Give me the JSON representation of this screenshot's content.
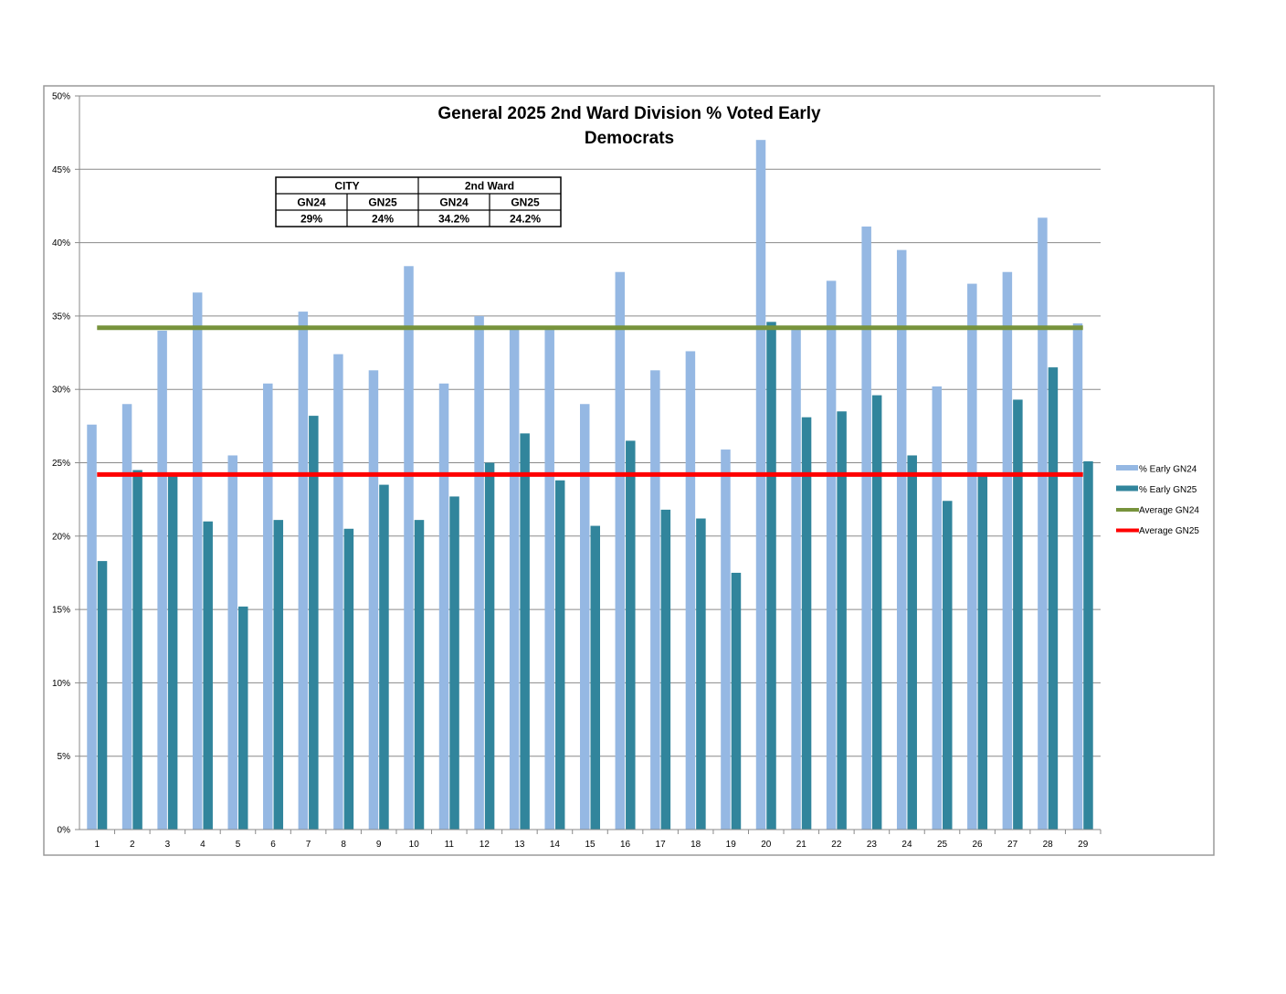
{
  "chart_data": {
    "type": "bar",
    "title": "General 2025 2nd Ward Division % Voted Early",
    "subtitle": "Democrats",
    "xlabel": "",
    "ylabel": "",
    "ylim": [
      0,
      50
    ],
    "y_ticks": [
      "0%",
      "5%",
      "10%",
      "15%",
      "20%",
      "25%",
      "30%",
      "35%",
      "40%",
      "45%",
      "50%"
    ],
    "grid": true,
    "legend_position": "right",
    "categories": [
      "1",
      "2",
      "3",
      "4",
      "5",
      "6",
      "7",
      "8",
      "9",
      "10",
      "11",
      "12",
      "13",
      "14",
      "15",
      "16",
      "17",
      "18",
      "19",
      "20",
      "21",
      "22",
      "23",
      "24",
      "25",
      "26",
      "27",
      "28",
      "29"
    ],
    "series": [
      {
        "name": "% Early GN24",
        "color": "#95b8e3",
        "values": [
          27.6,
          29.0,
          34.0,
          36.6,
          25.5,
          30.4,
          35.3,
          32.4,
          31.3,
          38.4,
          30.4,
          35.0,
          34.2,
          34.2,
          29.0,
          38.0,
          31.3,
          32.6,
          25.9,
          47.0,
          34.2,
          37.4,
          41.1,
          39.5,
          30.2,
          37.2,
          38.0,
          41.7,
          34.5
        ]
      },
      {
        "name": "% Early GN25",
        "color": "#31859c",
        "values": [
          18.3,
          24.5,
          24.2,
          21.0,
          15.2,
          21.1,
          28.2,
          20.5,
          23.5,
          21.1,
          22.7,
          25.0,
          27.0,
          23.8,
          20.7,
          26.5,
          21.8,
          21.2,
          17.5,
          34.6,
          28.1,
          28.5,
          29.6,
          25.5,
          22.4,
          24.2,
          29.3,
          31.5,
          25.1
        ]
      }
    ],
    "reference_lines": [
      {
        "name": "Average GN24",
        "value": 34.2,
        "color": "#77933c"
      },
      {
        "name": "Average GN25",
        "value": 24.2,
        "color": "#ff0000"
      }
    ],
    "summary_table": {
      "group_headers": [
        "CITY",
        "2nd Ward"
      ],
      "column_headers": [
        "GN24",
        "GN25",
        "GN24",
        "GN25"
      ],
      "values": [
        "29%",
        "24%",
        "34.2%",
        "24.2%"
      ]
    }
  }
}
